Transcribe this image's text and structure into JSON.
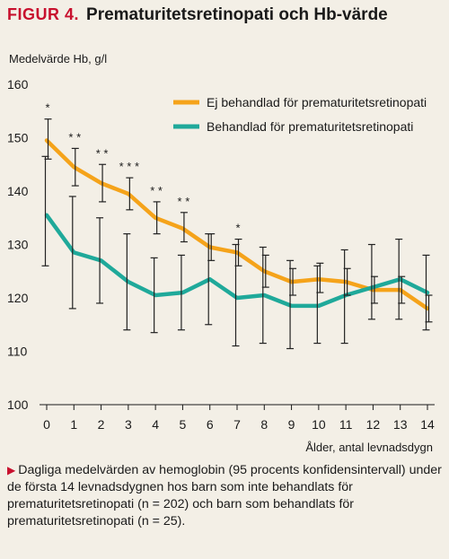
{
  "figure": {
    "label": "FIGUR 4.",
    "title": "Prematuritetsretinopati och Hb-värde"
  },
  "caption": {
    "bullet": "▶",
    "text": "Dagliga medelvärden av hemoglobin (95 procents konfidensinter­vall) under de första 14 levnadsdygnen hos barn som inte behandlats för prematuritetsretinopati (n = 202) och barn som behandlats för prematuritetsretinopati (n = 25)."
  },
  "chart_data": {
    "type": "line",
    "ylabel": "Medelvärde Hb, g/l",
    "xlabel": "Ålder, antal levnadsdygn",
    "x": [
      0,
      1,
      2,
      3,
      4,
      5,
      6,
      7,
      8,
      9,
      10,
      11,
      12,
      13,
      14
    ],
    "ylim": [
      100,
      160
    ],
    "yticks": [
      100,
      110,
      120,
      130,
      140,
      150,
      160
    ],
    "legend_position": "top-right",
    "grid": false,
    "series": [
      {
        "name": "Ej behandlad för prematuritetsretinopati",
        "color": "#f5a31a",
        "values": [
          149.5,
          144.5,
          141.5,
          139.5,
          135.0,
          133.0,
          129.5,
          128.5,
          125.0,
          123.0,
          123.5,
          123.0,
          121.5,
          121.5,
          118.0
        ],
        "ci_low": [
          146,
          141,
          138,
          136.5,
          132,
          130.5,
          127,
          126,
          122,
          120.5,
          121,
          120.5,
          119,
          119,
          115.5
        ],
        "ci_high": [
          153.5,
          148,
          145,
          142.5,
          138,
          136,
          132,
          131,
          128,
          125.5,
          126.5,
          125.5,
          124,
          124,
          120.5
        ]
      },
      {
        "name": "Behandlad för prematuritetsretinopati",
        "color": "#1fa99a",
        "values": [
          135.5,
          128.5,
          127.0,
          123.0,
          120.5,
          121.0,
          123.5,
          120.0,
          120.5,
          118.5,
          118.5,
          120.5,
          122.0,
          123.5,
          121.0
        ],
        "ci_low": [
          126,
          118,
          119,
          114,
          113.5,
          114,
          115,
          111,
          111.5,
          110.5,
          111.5,
          111.5,
          116,
          116,
          114
        ],
        "ci_high": [
          146.5,
          139,
          135,
          132,
          127.5,
          128,
          132,
          130,
          129.5,
          127,
          126,
          129,
          130,
          131,
          128
        ]
      }
    ],
    "annotations": [
      {
        "x": 0,
        "text": "*"
      },
      {
        "x": 1,
        "text": "* *"
      },
      {
        "x": 2,
        "text": "* *"
      },
      {
        "x": 3,
        "text": "* * *"
      },
      {
        "x": 4,
        "text": "* *"
      },
      {
        "x": 5,
        "text": "* *"
      },
      {
        "x": 7,
        "text": "*"
      }
    ]
  }
}
